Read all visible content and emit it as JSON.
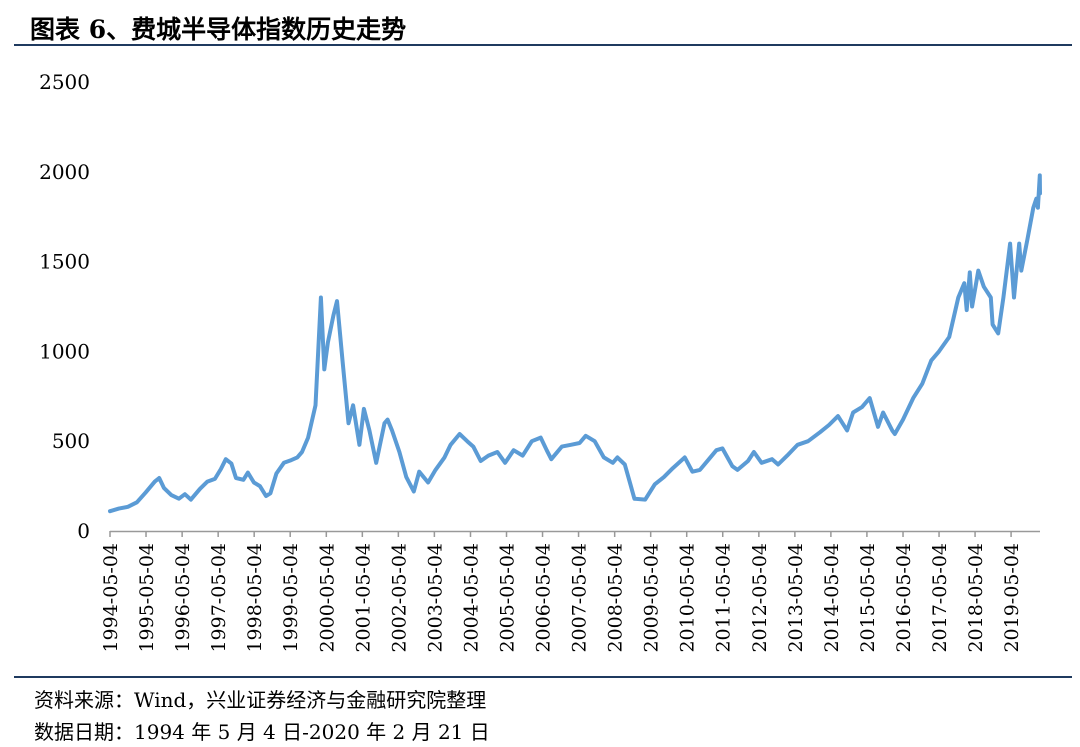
{
  "figure": {
    "title": "图表 6、费城半导体指数历史走势"
  },
  "footnotes": {
    "source": "资料来源：Wind，兴业证券经济与金融研究院整理",
    "period": "数据日期：1994 年 5 月 4 日-2020 年 2 月 21 日"
  },
  "colors": {
    "line": "#5b9bd5",
    "axis": "#999999",
    "rule": "#1f3a5f"
  },
  "chart_data": {
    "type": "line",
    "title": "",
    "xlabel": "",
    "ylabel": "",
    "ylim": [
      0,
      2500
    ],
    "yticks": [
      0,
      500,
      1000,
      1500,
      2000,
      2500
    ],
    "xticks": [
      "1994-05-04",
      "1995-05-04",
      "1996-05-04",
      "1997-05-04",
      "1998-05-04",
      "1999-05-04",
      "2000-05-04",
      "2001-05-04",
      "2002-05-04",
      "2003-05-04",
      "2004-05-04",
      "2005-05-04",
      "2006-05-04",
      "2007-05-04",
      "2008-05-04",
      "2009-05-04",
      "2010-05-04",
      "2011-05-04",
      "2012-05-04",
      "2013-05-04",
      "2014-05-04",
      "2015-05-04",
      "2016-05-04",
      "2017-05-04",
      "2018-05-04",
      "2019-05-04"
    ],
    "x_range": [
      "1994-05-04",
      "2020-02-21"
    ],
    "grid": false,
    "legend": "none",
    "series": [
      {
        "name": "",
        "points": [
          [
            "1994-05-04",
            110
          ],
          [
            "1994-08-01",
            125
          ],
          [
            "1994-11-01",
            135
          ],
          [
            "1995-02-01",
            160
          ],
          [
            "1995-05-01",
            215
          ],
          [
            "1995-08-01",
            275
          ],
          [
            "1995-09-15",
            295
          ],
          [
            "1995-11-01",
            240
          ],
          [
            "1996-01-15",
            200
          ],
          [
            "1996-04-01",
            180
          ],
          [
            "1996-06-01",
            205
          ],
          [
            "1996-08-01",
            175
          ],
          [
            "1996-11-01",
            235
          ],
          [
            "1997-01-15",
            275
          ],
          [
            "1997-04-01",
            290
          ],
          [
            "1997-06-01",
            345
          ],
          [
            "1997-07-20",
            400
          ],
          [
            "1997-09-15",
            375
          ],
          [
            "1997-11-01",
            295
          ],
          [
            "1998-01-15",
            285
          ],
          [
            "1998-03-01",
            325
          ],
          [
            "1998-05-01",
            270
          ],
          [
            "1998-07-01",
            250
          ],
          [
            "1998-09-01",
            195
          ],
          [
            "1998-10-15",
            210
          ],
          [
            "1998-12-15",
            320
          ],
          [
            "1999-03-01",
            380
          ],
          [
            "1999-05-15",
            395
          ],
          [
            "1999-07-15",
            410
          ],
          [
            "1999-09-01",
            440
          ],
          [
            "1999-11-01",
            520
          ],
          [
            "2000-01-15",
            700
          ],
          [
            "2000-03-10",
            1300
          ],
          [
            "2000-04-14",
            900
          ],
          [
            "2000-05-20",
            1050
          ],
          [
            "2000-07-15",
            1200
          ],
          [
            "2000-08-20",
            1280
          ],
          [
            "2000-10-15",
            950
          ],
          [
            "2000-12-15",
            600
          ],
          [
            "2001-01-30",
            700
          ],
          [
            "2001-04-04",
            480
          ],
          [
            "2001-05-20",
            680
          ],
          [
            "2001-07-15",
            560
          ],
          [
            "2001-09-21",
            380
          ],
          [
            "2001-12-15",
            600
          ],
          [
            "2002-01-15",
            620
          ],
          [
            "2002-03-01",
            560
          ],
          [
            "2002-05-15",
            440
          ],
          [
            "2002-07-23",
            300
          ],
          [
            "2002-10-08",
            220
          ],
          [
            "2002-12-01",
            330
          ],
          [
            "2003-03-01",
            270
          ],
          [
            "2003-05-15",
            340
          ],
          [
            "2003-08-15",
            410
          ],
          [
            "2003-10-15",
            480
          ],
          [
            "2004-01-15",
            540
          ],
          [
            "2004-04-01",
            500
          ],
          [
            "2004-06-01",
            470
          ],
          [
            "2004-08-15",
            390
          ],
          [
            "2004-11-01",
            420
          ],
          [
            "2005-02-01",
            440
          ],
          [
            "2005-04-20",
            380
          ],
          [
            "2005-07-15",
            450
          ],
          [
            "2005-10-15",
            420
          ],
          [
            "2006-01-15",
            500
          ],
          [
            "2006-04-15",
            520
          ],
          [
            "2006-06-15",
            450
          ],
          [
            "2006-08-01",
            400
          ],
          [
            "2006-11-15",
            470
          ],
          [
            "2007-02-15",
            480
          ],
          [
            "2007-05-15",
            490
          ],
          [
            "2007-07-15",
            530
          ],
          [
            "2007-10-15",
            500
          ],
          [
            "2008-01-15",
            410
          ],
          [
            "2008-04-15",
            380
          ],
          [
            "2008-06-01",
            410
          ],
          [
            "2008-08-15",
            370
          ],
          [
            "2008-10-10",
            260
          ],
          [
            "2008-11-20",
            180
          ],
          [
            "2009-03-09",
            175
          ],
          [
            "2009-06-15",
            260
          ],
          [
            "2009-09-15",
            300
          ],
          [
            "2009-12-15",
            350
          ],
          [
            "2010-04-15",
            410
          ],
          [
            "2010-07-01",
            330
          ],
          [
            "2010-09-15",
            340
          ],
          [
            "2010-12-15",
            400
          ],
          [
            "2011-03-01",
            450
          ],
          [
            "2011-05-01",
            460
          ],
          [
            "2011-08-10",
            360
          ],
          [
            "2011-10-01",
            340
          ],
          [
            "2012-01-15",
            390
          ],
          [
            "2012-03-15",
            440
          ],
          [
            "2012-06-01",
            380
          ],
          [
            "2012-09-15",
            400
          ],
          [
            "2012-11-15",
            370
          ],
          [
            "2013-02-15",
            420
          ],
          [
            "2013-06-01",
            480
          ],
          [
            "2013-09-15",
            500
          ],
          [
            "2014-01-15",
            550
          ],
          [
            "2014-04-15",
            590
          ],
          [
            "2014-07-15",
            640
          ],
          [
            "2014-10-15",
            560
          ],
          [
            "2014-12-15",
            660
          ],
          [
            "2015-03-15",
            690
          ],
          [
            "2015-06-01",
            740
          ],
          [
            "2015-08-24",
            580
          ],
          [
            "2015-10-15",
            660
          ],
          [
            "2016-01-15",
            560
          ],
          [
            "2016-02-11",
            540
          ],
          [
            "2016-05-04",
            620
          ],
          [
            "2016-08-15",
            740
          ],
          [
            "2016-11-15",
            820
          ],
          [
            "2017-02-15",
            950
          ],
          [
            "2017-05-04",
            1000
          ],
          [
            "2017-08-15",
            1080
          ],
          [
            "2017-11-15",
            1300
          ],
          [
            "2018-01-15",
            1380
          ],
          [
            "2018-02-08",
            1230
          ],
          [
            "2018-03-12",
            1440
          ],
          [
            "2018-04-04",
            1250
          ],
          [
            "2018-06-06",
            1450
          ],
          [
            "2018-08-01",
            1360
          ],
          [
            "2018-10-10",
            1300
          ],
          [
            "2018-10-29",
            1150
          ],
          [
            "2018-12-24",
            1100
          ],
          [
            "2019-02-15",
            1300
          ],
          [
            "2019-04-24",
            1600
          ],
          [
            "2019-06-03",
            1300
          ],
          [
            "2019-07-25",
            1600
          ],
          [
            "2019-08-15",
            1450
          ],
          [
            "2019-10-15",
            1620
          ],
          [
            "2019-12-15",
            1800
          ],
          [
            "2020-01-15",
            1850
          ],
          [
            "2020-01-31",
            1800
          ],
          [
            "2020-02-19",
            1980
          ],
          [
            "2020-02-21",
            1880
          ]
        ]
      }
    ]
  }
}
